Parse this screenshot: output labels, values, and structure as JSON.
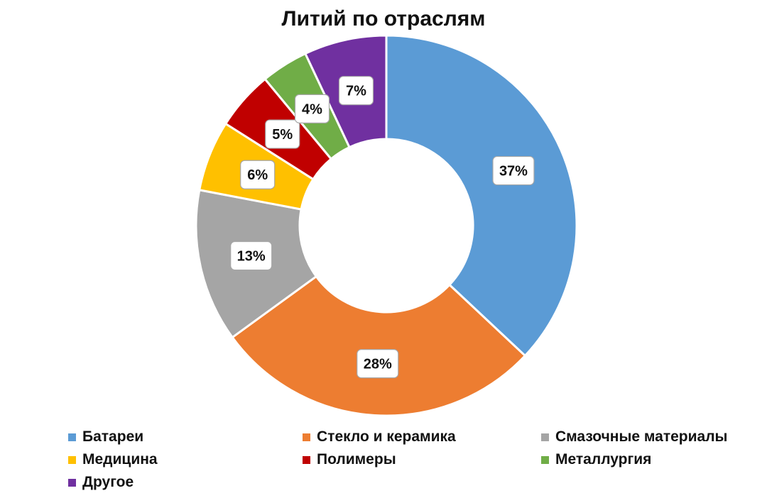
{
  "chart_data": {
    "type": "pie",
    "title": "Литий по отраслям",
    "series": [
      {
        "name": "Батареи",
        "value": 37,
        "label": "37%",
        "color": "#5b9bd5"
      },
      {
        "name": "Стекло и керамика",
        "value": 28,
        "label": "28%",
        "color": "#ed7d31"
      },
      {
        "name": "Смазочные материалы",
        "value": 13,
        "label": "13%",
        "color": "#a5a5a5"
      },
      {
        "name": "Медицина",
        "value": 6,
        "label": "6%",
        "color": "#ffc000"
      },
      {
        "name": "Полимеры",
        "value": 5,
        "label": "5%",
        "color": "#c00000"
      },
      {
        "name": "Металлургия",
        "value": 4,
        "label": "4%",
        "color": "#70ad47"
      },
      {
        "name": "Другое",
        "value": 7,
        "label": "7%",
        "color": "#7030a0"
      }
    ],
    "legend_position": "bottom"
  }
}
